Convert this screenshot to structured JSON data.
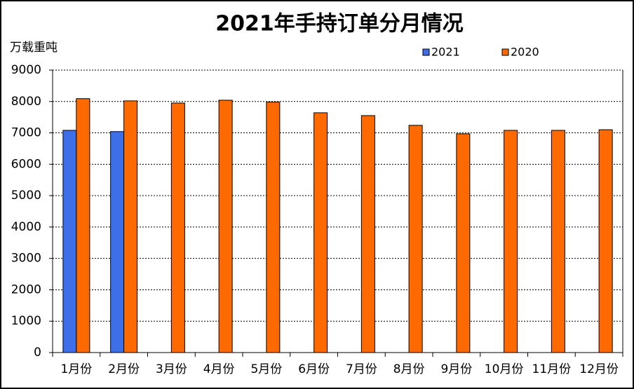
{
  "chart_data": {
    "type": "bar",
    "title": "2021年手持订单分月情况",
    "y_label": "万载重吨",
    "categories": [
      "1月份",
      "2月份",
      "3月份",
      "4月份",
      "5月份",
      "6月份",
      "7月份",
      "8月份",
      "9月份",
      "10月份",
      "11月份",
      "12月份"
    ],
    "series": [
      {
        "name": "2021",
        "color": "#3f6fe8",
        "values": [
          7080,
          7040,
          null,
          null,
          null,
          null,
          null,
          null,
          null,
          null,
          null,
          null
        ]
      },
      {
        "name": "2020",
        "color": "#ff6a00",
        "values": [
          8090,
          8020,
          7950,
          8040,
          7980,
          7640,
          7550,
          7240,
          6970,
          7080,
          7080,
          7100
        ]
      }
    ],
    "ylim": [
      0,
      9000
    ],
    "yticks": [
      0,
      1000,
      2000,
      3000,
      4000,
      5000,
      6000,
      7000,
      8000,
      9000
    ],
    "grid": true
  }
}
